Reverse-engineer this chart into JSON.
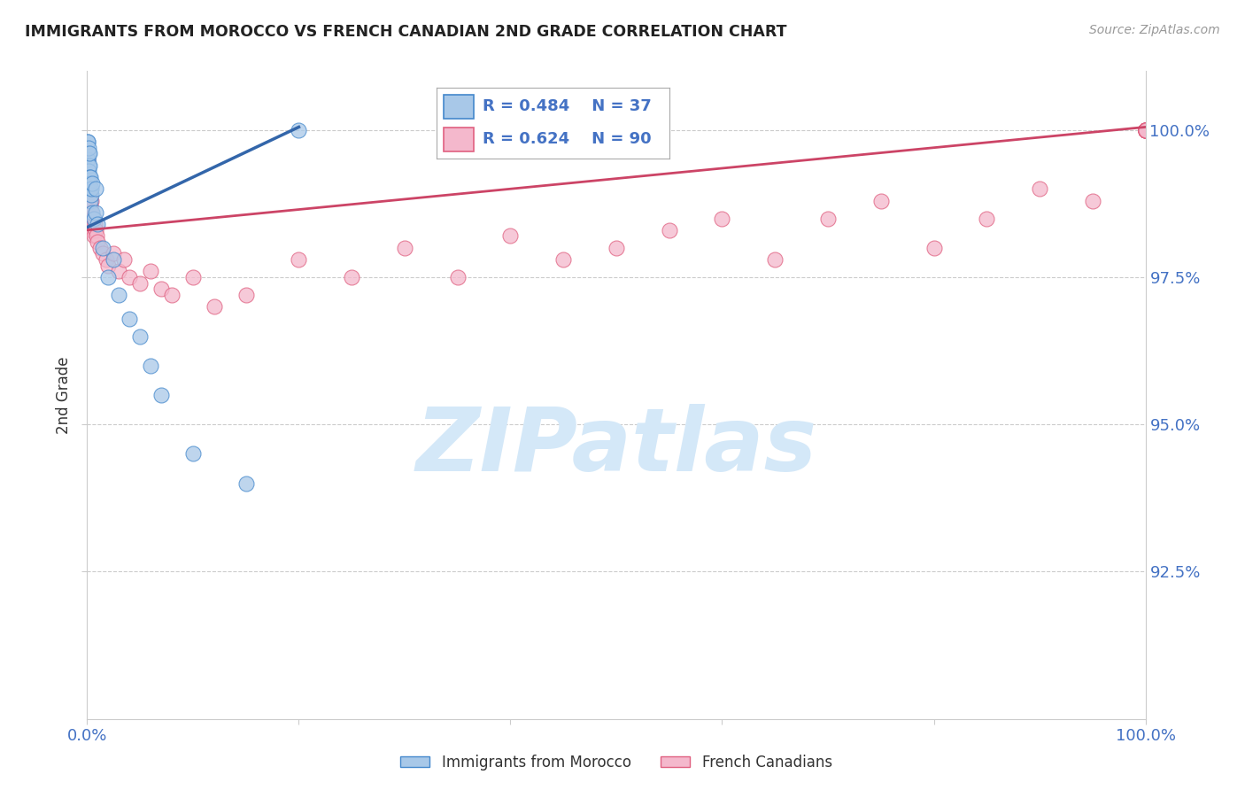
{
  "title": "IMMIGRANTS FROM MOROCCO VS FRENCH CANADIAN 2ND GRADE CORRELATION CHART",
  "source": "Source: ZipAtlas.com",
  "ylabel": "2nd Grade",
  "xlim": [
    0.0,
    100.0
  ],
  "ylim": [
    90.0,
    101.0
  ],
  "yticks": [
    92.5,
    95.0,
    97.5,
    100.0
  ],
  "ytick_labels": [
    "92.5%",
    "95.0%",
    "97.5%",
    "100.0%"
  ],
  "xtick_labels_show": [
    "0.0%",
    "100.0%"
  ],
  "blue_R": 0.484,
  "blue_N": 37,
  "pink_R": 0.624,
  "pink_N": 90,
  "blue_fill": "#a8c8e8",
  "pink_fill": "#f4b8cc",
  "blue_edge": "#4488cc",
  "pink_edge": "#e06080",
  "blue_line": "#3366aa",
  "pink_line": "#cc4466",
  "legend_blue": "Immigrants from Morocco",
  "legend_pink": "French Canadians",
  "background_color": "#ffffff",
  "grid_color": "#cccccc",
  "title_color": "#222222",
  "label_color": "#333333",
  "tick_color_blue": "#4472c4",
  "watermark_color": "#d4e8f8",
  "watermark_text": "ZIPatlas",
  "blue_x": [
    0.02,
    0.05,
    0.05,
    0.08,
    0.08,
    0.08,
    0.1,
    0.1,
    0.12,
    0.15,
    0.15,
    0.18,
    0.2,
    0.2,
    0.22,
    0.25,
    0.3,
    0.3,
    0.35,
    0.4,
    0.5,
    0.5,
    0.6,
    0.8,
    0.8,
    1.0,
    1.5,
    2.0,
    2.5,
    3.0,
    4.0,
    5.0,
    6.0,
    7.0,
    10.0,
    15.0,
    20.0
  ],
  "blue_y": [
    99.2,
    99.5,
    99.8,
    99.0,
    99.5,
    99.8,
    99.2,
    99.6,
    99.4,
    99.3,
    99.7,
    99.0,
    99.4,
    99.6,
    99.2,
    99.1,
    98.8,
    99.2,
    98.9,
    99.0,
    98.6,
    99.1,
    98.5,
    98.6,
    99.0,
    98.4,
    98.0,
    97.5,
    97.8,
    97.2,
    96.8,
    96.5,
    96.0,
    95.5,
    94.5,
    94.0,
    100.0
  ],
  "pink_x": [
    0.05,
    0.08,
    0.1,
    0.12,
    0.15,
    0.18,
    0.2,
    0.22,
    0.25,
    0.28,
    0.3,
    0.32,
    0.35,
    0.38,
    0.4,
    0.45,
    0.5,
    0.55,
    0.6,
    0.65,
    0.7,
    0.8,
    0.9,
    1.0,
    1.2,
    1.5,
    1.8,
    2.0,
    2.5,
    3.0,
    3.5,
    4.0,
    5.0,
    6.0,
    7.0,
    8.0,
    10.0,
    12.0,
    15.0,
    20.0,
    25.0,
    30.0,
    35.0,
    40.0,
    45.0,
    50.0,
    55.0,
    60.0,
    65.0,
    70.0,
    75.0,
    80.0,
    85.0,
    90.0,
    95.0,
    100.0,
    100.0,
    100.0,
    100.0,
    100.0,
    100.0,
    100.0,
    100.0,
    100.0,
    100.0,
    100.0,
    100.0,
    100.0,
    100.0,
    100.0,
    100.0,
    100.0,
    100.0,
    100.0,
    100.0,
    100.0,
    100.0,
    100.0,
    100.0,
    100.0,
    100.0,
    100.0,
    100.0,
    100.0,
    100.0,
    100.0,
    100.0,
    100.0,
    100.0,
    100.0
  ],
  "pink_y": [
    99.5,
    98.8,
    99.2,
    98.6,
    99.0,
    98.5,
    98.9,
    98.6,
    98.8,
    98.5,
    98.7,
    98.4,
    98.8,
    98.3,
    98.6,
    98.5,
    98.4,
    98.3,
    98.5,
    98.2,
    98.4,
    98.3,
    98.2,
    98.1,
    98.0,
    97.9,
    97.8,
    97.7,
    97.9,
    97.6,
    97.8,
    97.5,
    97.4,
    97.6,
    97.3,
    97.2,
    97.5,
    97.0,
    97.2,
    97.8,
    97.5,
    98.0,
    97.5,
    98.2,
    97.8,
    98.0,
    98.3,
    98.5,
    97.8,
    98.5,
    98.8,
    98.0,
    98.5,
    99.0,
    98.8,
    100.0,
    100.0,
    100.0,
    100.0,
    100.0,
    100.0,
    100.0,
    100.0,
    100.0,
    100.0,
    100.0,
    100.0,
    100.0,
    100.0,
    100.0,
    100.0,
    100.0,
    100.0,
    100.0,
    100.0,
    100.0,
    100.0,
    100.0,
    100.0,
    100.0,
    100.0,
    100.0,
    100.0,
    100.0,
    100.0,
    100.0,
    100.0,
    100.0,
    100.0,
    100.0
  ],
  "blue_line_x": [
    0.02,
    20.0
  ],
  "blue_line_y": [
    98.35,
    100.05
  ],
  "pink_line_x": [
    0.0,
    100.0
  ],
  "pink_line_y": [
    98.3,
    100.05
  ]
}
